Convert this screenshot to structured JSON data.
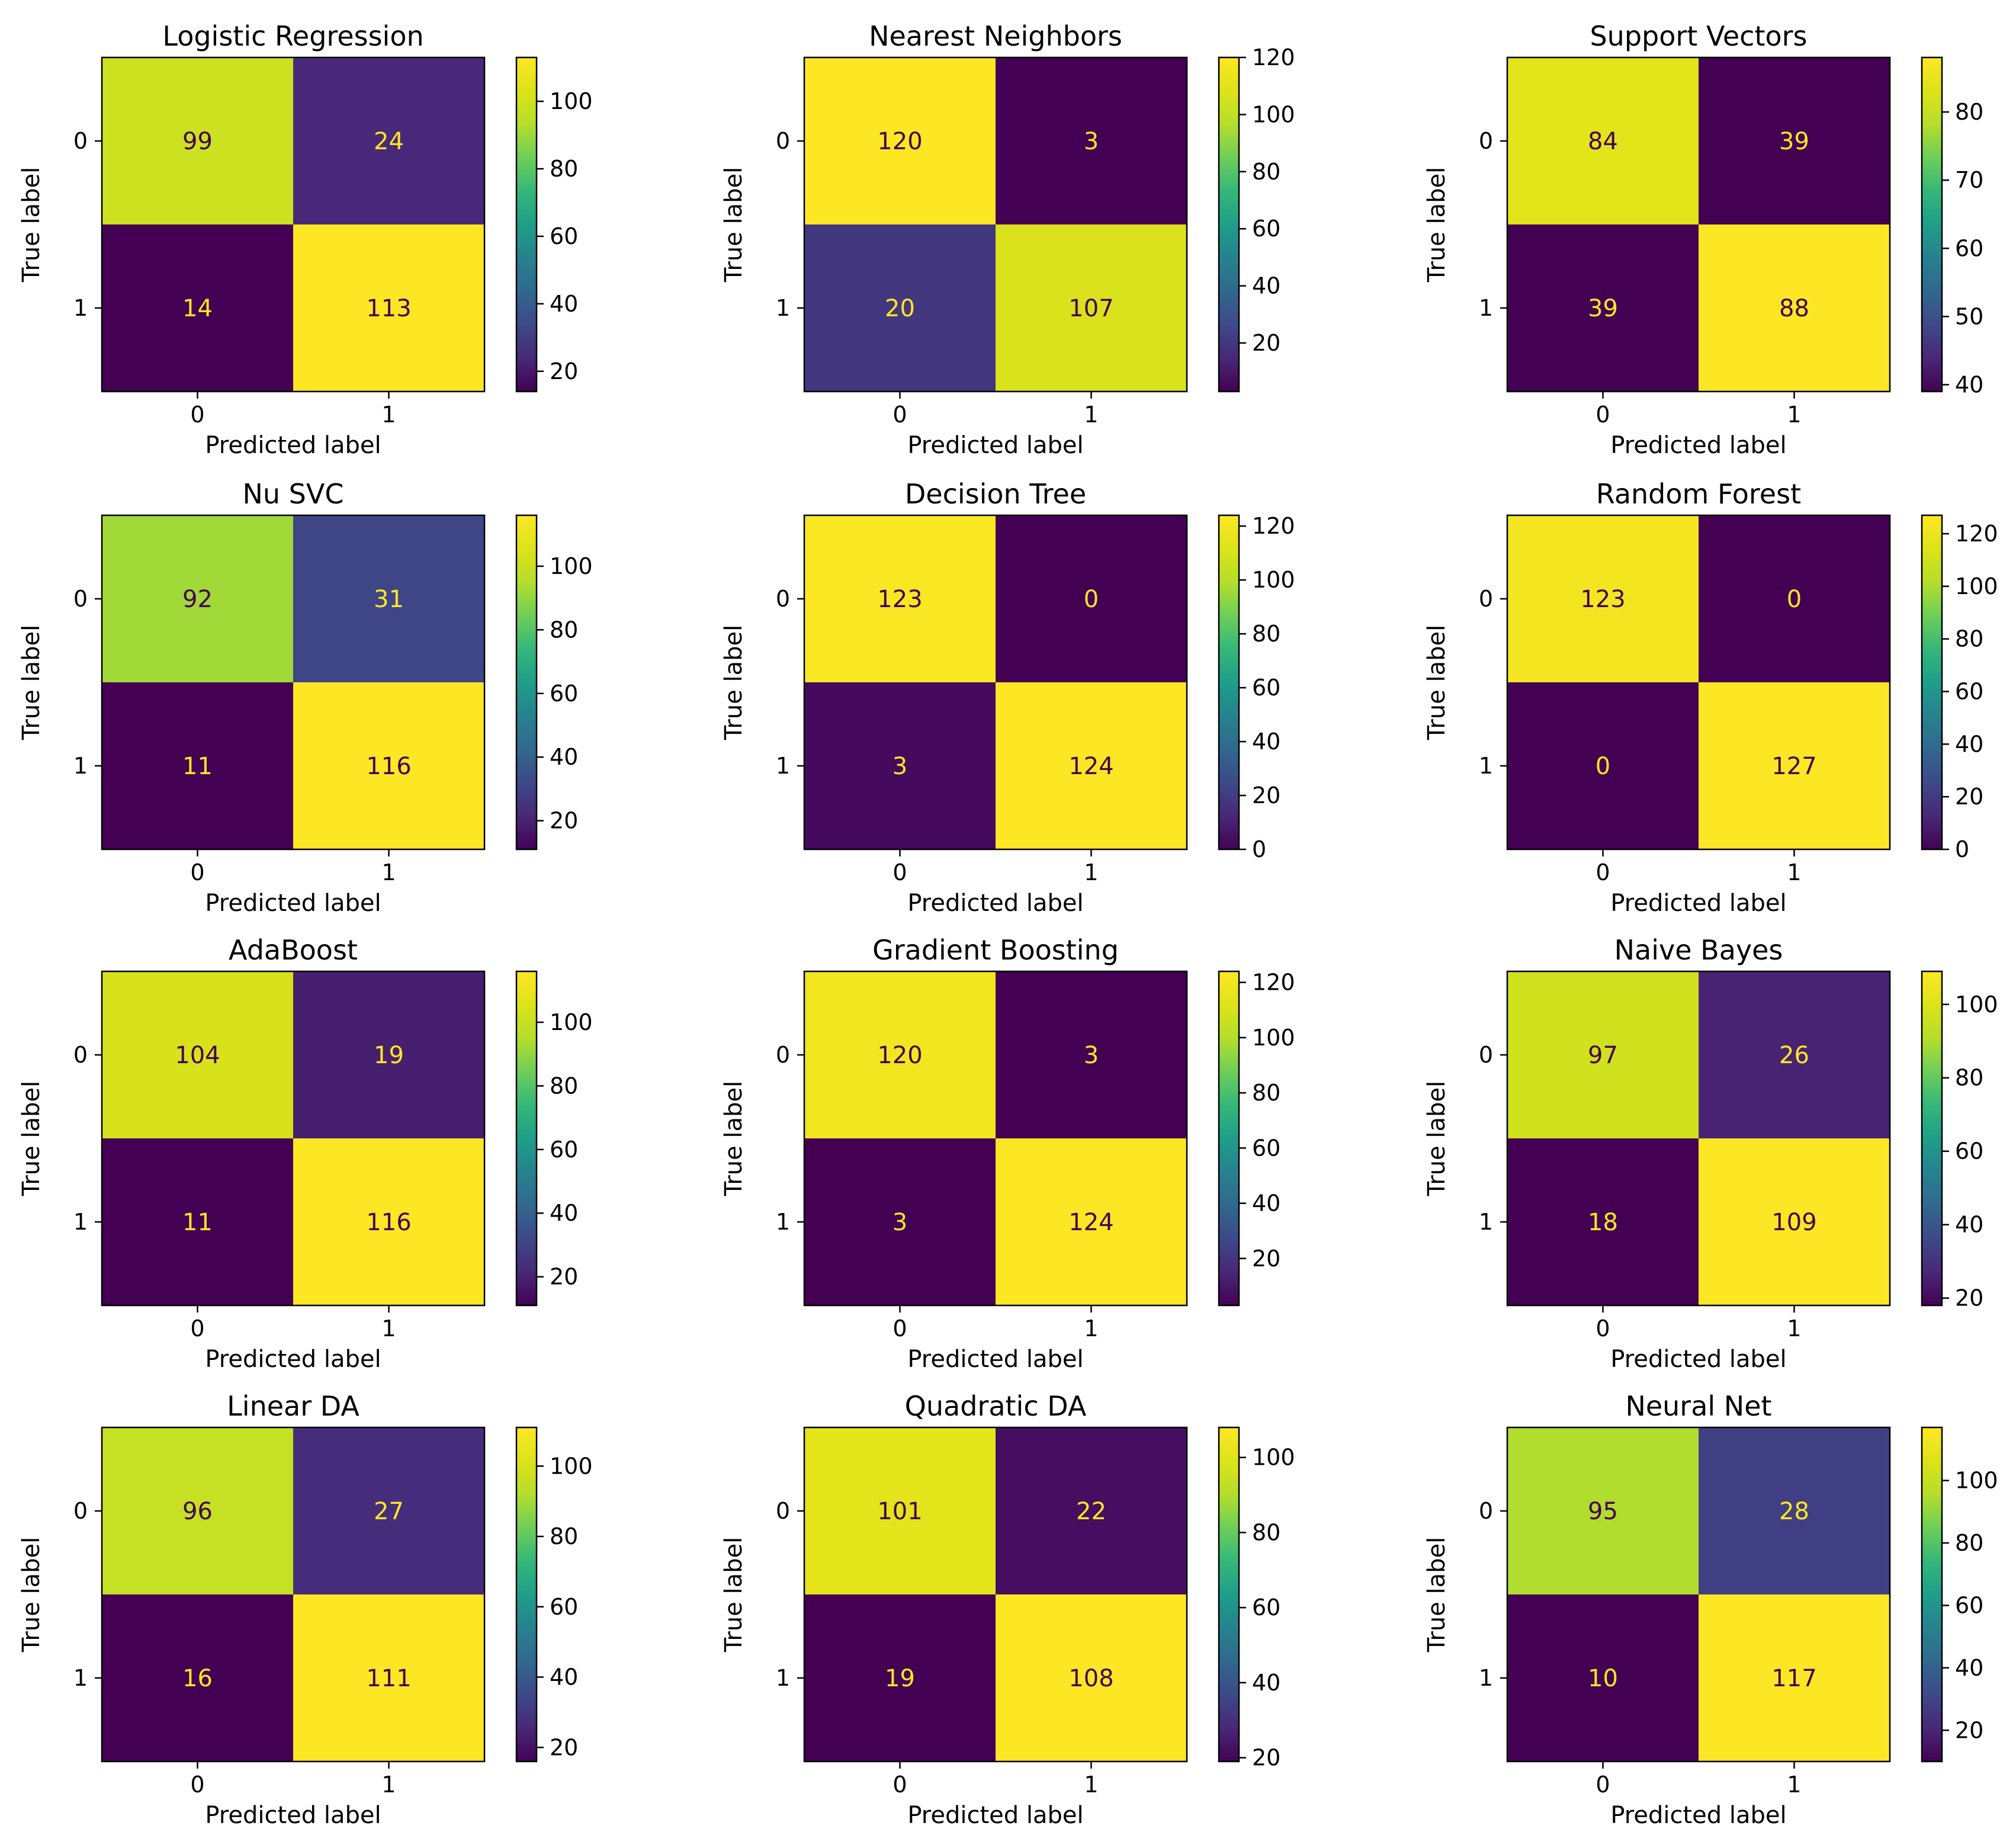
{
  "chart_data": [
    {
      "type": "heatmap",
      "title": "Logistic Regression",
      "xlabel": "Predicted label",
      "ylabel": "True label",
      "x_ticks": [
        "0",
        "1"
      ],
      "y_ticks": [
        "0",
        "1"
      ],
      "matrix": [
        [
          99,
          24
        ],
        [
          14,
          113
        ]
      ],
      "colorbar_range": [
        14,
        113
      ],
      "colorbar_ticks": [
        20,
        40,
        60,
        80,
        100
      ]
    },
    {
      "type": "heatmap",
      "title": "Nearest Neighbors",
      "xlabel": "Predicted label",
      "ylabel": "True label",
      "x_ticks": [
        "0",
        "1"
      ],
      "y_ticks": [
        "0",
        "1"
      ],
      "matrix": [
        [
          120,
          3
        ],
        [
          20,
          107
        ]
      ],
      "colorbar_range": [
        3,
        120
      ],
      "colorbar_ticks": [
        20,
        40,
        60,
        80,
        100,
        120
      ]
    },
    {
      "type": "heatmap",
      "title": "Support Vectors",
      "xlabel": "Predicted label",
      "ylabel": "True label",
      "x_ticks": [
        "0",
        "1"
      ],
      "y_ticks": [
        "0",
        "1"
      ],
      "matrix": [
        [
          84,
          39
        ],
        [
          39,
          88
        ]
      ],
      "colorbar_range": [
        39,
        88
      ],
      "colorbar_ticks": [
        40,
        50,
        60,
        70,
        80
      ]
    },
    {
      "type": "heatmap",
      "title": "Nu SVC",
      "xlabel": "Predicted label",
      "ylabel": "True label",
      "x_ticks": [
        "0",
        "1"
      ],
      "y_ticks": [
        "0",
        "1"
      ],
      "matrix": [
        [
          92,
          31
        ],
        [
          11,
          116
        ]
      ],
      "colorbar_range": [
        11,
        116
      ],
      "colorbar_ticks": [
        20,
        40,
        60,
        80,
        100
      ]
    },
    {
      "type": "heatmap",
      "title": "Decision Tree",
      "xlabel": "Predicted label",
      "ylabel": "True label",
      "x_ticks": [
        "0",
        "1"
      ],
      "y_ticks": [
        "0",
        "1"
      ],
      "matrix": [
        [
          123,
          0
        ],
        [
          3,
          124
        ]
      ],
      "colorbar_range": [
        0,
        124
      ],
      "colorbar_ticks": [
        0,
        20,
        40,
        60,
        80,
        100,
        120
      ]
    },
    {
      "type": "heatmap",
      "title": "Random Forest",
      "xlabel": "Predicted label",
      "ylabel": "True label",
      "x_ticks": [
        "0",
        "1"
      ],
      "y_ticks": [
        "0",
        "1"
      ],
      "matrix": [
        [
          123,
          0
        ],
        [
          0,
          127
        ]
      ],
      "colorbar_range": [
        0,
        127
      ],
      "colorbar_ticks": [
        0,
        20,
        40,
        60,
        80,
        100,
        120
      ]
    },
    {
      "type": "heatmap",
      "title": "AdaBoost",
      "xlabel": "Predicted label",
      "ylabel": "True label",
      "x_ticks": [
        "0",
        "1"
      ],
      "y_ticks": [
        "0",
        "1"
      ],
      "matrix": [
        [
          104,
          19
        ],
        [
          11,
          116
        ]
      ],
      "colorbar_range": [
        11,
        116
      ],
      "colorbar_ticks": [
        20,
        40,
        60,
        80,
        100
      ]
    },
    {
      "type": "heatmap",
      "title": "Gradient Boosting",
      "xlabel": "Predicted label",
      "ylabel": "True label",
      "x_ticks": [
        "0",
        "1"
      ],
      "y_ticks": [
        "0",
        "1"
      ],
      "matrix": [
        [
          120,
          3
        ],
        [
          3,
          124
        ]
      ],
      "colorbar_range": [
        3,
        124
      ],
      "colorbar_ticks": [
        20,
        40,
        60,
        80,
        100,
        120
      ]
    },
    {
      "type": "heatmap",
      "title": "Naive Bayes",
      "xlabel": "Predicted label",
      "ylabel": "True label",
      "x_ticks": [
        "0",
        "1"
      ],
      "y_ticks": [
        "0",
        "1"
      ],
      "matrix": [
        [
          97,
          26
        ],
        [
          18,
          109
        ]
      ],
      "colorbar_range": [
        18,
        109
      ],
      "colorbar_ticks": [
        20,
        40,
        60,
        80,
        100
      ]
    },
    {
      "type": "heatmap",
      "title": "Linear DA",
      "xlabel": "Predicted label",
      "ylabel": "True label",
      "x_ticks": [
        "0",
        "1"
      ],
      "y_ticks": [
        "0",
        "1"
      ],
      "matrix": [
        [
          96,
          27
        ],
        [
          16,
          111
        ]
      ],
      "colorbar_range": [
        16,
        111
      ],
      "colorbar_ticks": [
        20,
        40,
        60,
        80,
        100
      ]
    },
    {
      "type": "heatmap",
      "title": "Quadratic DA",
      "xlabel": "Predicted label",
      "ylabel": "True label",
      "x_ticks": [
        "0",
        "1"
      ],
      "y_ticks": [
        "0",
        "1"
      ],
      "matrix": [
        [
          101,
          22
        ],
        [
          19,
          108
        ]
      ],
      "colorbar_range": [
        19,
        108
      ],
      "colorbar_ticks": [
        20,
        40,
        60,
        80,
        100
      ]
    },
    {
      "type": "heatmap",
      "title": "Neural Net",
      "xlabel": "Predicted label",
      "ylabel": "True label",
      "x_ticks": [
        "0",
        "1"
      ],
      "y_ticks": [
        "0",
        "1"
      ],
      "matrix": [
        [
          95,
          28
        ],
        [
          10,
          117
        ]
      ],
      "colorbar_range": [
        10,
        117
      ],
      "colorbar_ticks": [
        20,
        40,
        60,
        80,
        100
      ]
    }
  ],
  "colormap": "viridis",
  "annotation_colors": {
    "on_dark": "#fde725",
    "on_light": "#440154"
  },
  "colors": {
    "axis": "#000000",
    "background": "#ffffff"
  }
}
